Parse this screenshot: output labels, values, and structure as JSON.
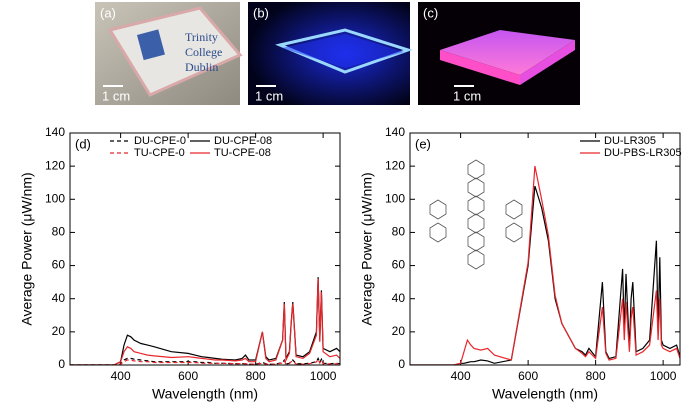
{
  "panels": [
    {
      "label": "(a)",
      "scale": "1 cm",
      "text": [
        "Trinity",
        "College",
        "Dublin"
      ]
    },
    {
      "label": "(b)",
      "scale": "1 cm"
    },
    {
      "label": "(c)",
      "scale": "1 cm"
    }
  ],
  "chart_data": [
    {
      "type": "line",
      "label": "(d)",
      "xlabel": "Wavelength (nm)",
      "ylabel": "Average Power (μW/nm)",
      "xlim": [
        250,
        1050
      ],
      "xticks": [
        400,
        600,
        800,
        1000
      ],
      "ylim": [
        0,
        140
      ],
      "yticks": [
        0,
        20,
        40,
        60,
        80,
        100,
        120,
        140
      ],
      "legend": "upper center",
      "x": [
        250,
        300,
        350,
        380,
        400,
        410,
        420,
        430,
        440,
        460,
        480,
        500,
        550,
        600,
        620,
        640,
        660,
        680,
        700,
        740,
        760,
        770,
        780,
        800,
        820,
        830,
        840,
        860,
        880,
        885,
        890,
        900,
        905,
        910,
        920,
        940,
        960,
        980,
        985,
        990,
        995,
        1000,
        1020,
        1040,
        1050
      ],
      "series": [
        {
          "name": "DU-CPE-0",
          "color": "#000000",
          "dash": true,
          "values": [
            0,
            0,
            0,
            0,
            0.5,
            3,
            4,
            4,
            3.5,
            3,
            2.5,
            2,
            2,
            2,
            2,
            1.5,
            1.5,
            1,
            1,
            0.8,
            0.8,
            0.8,
            0.5,
            0.5,
            1.5,
            0.8,
            0.5,
            0.6,
            1.5,
            3,
            0.6,
            1,
            2.5,
            3,
            0.8,
            0.7,
            1,
            2,
            4,
            1.5,
            3.5,
            1,
            0.8,
            1,
            0.8
          ]
        },
        {
          "name": "TU-CPE-0",
          "color": "#e8262b",
          "dash": true,
          "values": [
            0,
            0,
            0,
            0,
            0.5,
            2,
            3,
            3,
            2.5,
            2,
            2,
            1.5,
            1.5,
            1.5,
            1.5,
            1,
            1,
            1,
            1,
            0.8,
            0.8,
            0.8,
            0.5,
            0.5,
            1,
            0.5,
            0.4,
            0.5,
            1.2,
            2.5,
            0.5,
            0.8,
            2,
            2.5,
            0.6,
            0.5,
            0.8,
            1.8,
            3.5,
            1.2,
            3,
            0.8,
            0.6,
            0.8,
            0.6
          ]
        },
        {
          "name": "DU-CPE-08",
          "color": "#000000",
          "dash": false,
          "values": [
            0,
            0,
            0,
            0,
            2,
            12,
            18,
            17,
            15,
            13,
            12,
            11,
            8,
            7,
            6,
            5,
            4.5,
            4,
            3.5,
            3,
            4,
            6,
            3,
            3,
            20,
            5,
            3,
            4,
            15,
            38,
            4,
            8,
            25,
            38,
            6,
            5,
            8,
            20,
            53,
            15,
            45,
            10,
            8,
            10,
            8
          ]
        },
        {
          "name": "TU-CPE-08",
          "color": "#e8262b",
          "dash": false,
          "values": [
            0,
            0,
            0,
            0,
            2,
            8,
            11,
            10,
            8,
            7,
            6,
            5.5,
            4.5,
            5,
            4.5,
            4,
            3.5,
            3,
            3,
            2.5,
            3,
            4,
            2,
            2,
            20,
            4,
            2,
            3,
            15,
            37,
            3,
            7,
            24,
            37,
            5,
            4,
            7,
            18,
            52,
            14,
            44,
            8,
            5,
            6,
            4
          ]
        }
      ]
    },
    {
      "type": "line",
      "label": "(e)",
      "xlabel": "Wavelength (nm)",
      "ylabel": "Average Power (μW/nm)",
      "xlim": [
        250,
        1050
      ],
      "xticks": [
        400,
        600,
        800,
        1000
      ],
      "ylim": [
        0,
        140
      ],
      "yticks": [
        0,
        20,
        40,
        60,
        80,
        100,
        120,
        140
      ],
      "legend": "upper right",
      "x": [
        250,
        300,
        350,
        380,
        400,
        410,
        420,
        430,
        440,
        460,
        480,
        500,
        550,
        600,
        620,
        640,
        660,
        680,
        700,
        740,
        760,
        770,
        780,
        800,
        820,
        830,
        840,
        860,
        880,
        885,
        890,
        900,
        905,
        910,
        920,
        940,
        960,
        980,
        985,
        990,
        995,
        1000,
        1020,
        1040,
        1050
      ],
      "series": [
        {
          "name": "DU-LR305",
          "color": "#000000",
          "dash": false,
          "values": [
            0,
            0,
            0,
            0,
            1,
            1,
            1.5,
            2,
            2,
            3,
            2.5,
            1,
            3,
            60,
            108,
            95,
            75,
            40,
            25,
            10,
            8,
            6,
            10,
            5,
            50,
            8,
            4,
            5,
            58,
            20,
            55,
            10,
            40,
            50,
            8,
            10,
            15,
            75,
            20,
            65,
            15,
            12,
            10,
            12,
            5
          ]
        },
        {
          "name": "DU-PBS-LR305",
          "color": "#e8262b",
          "dash": false,
          "values": [
            0,
            0,
            0,
            0,
            1,
            8,
            15,
            12,
            10,
            9,
            10,
            6,
            3,
            62,
            120,
            100,
            78,
            42,
            25,
            10,
            7,
            5,
            8,
            4,
            35,
            7,
            3,
            4,
            40,
            15,
            38,
            8,
            28,
            35,
            6,
            8,
            12,
            45,
            15,
            40,
            12,
            10,
            8,
            10,
            4
          ]
        }
      ]
    }
  ]
}
